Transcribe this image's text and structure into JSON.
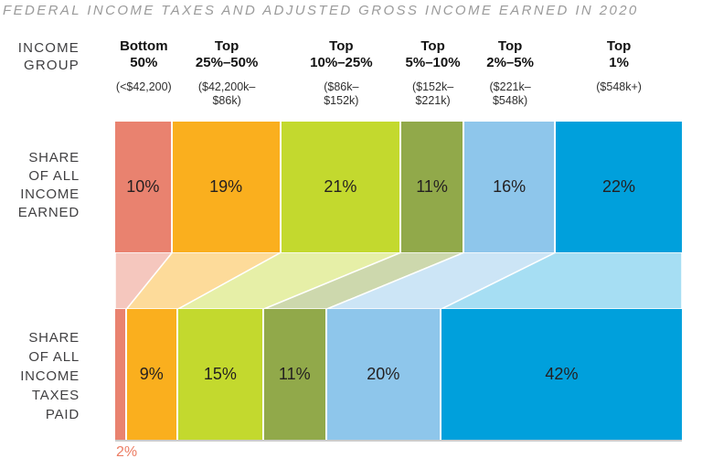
{
  "left_axis": {
    "income_group": "INCOME\nGROUP",
    "row1": "SHARE\nOF ALL\nINCOME\nEARNED",
    "row2": "SHARE\nOF ALL\nINCOME\nTAXES\nPAID"
  },
  "outside_label": {
    "text": "2%",
    "color": "#EC7D64"
  },
  "chart_data": {
    "type": "bar",
    "subtype": "stacked-100pct-bars-with-flow-bands",
    "title": "FEDERAL INCOME TAXES AND ADJUSTED GROSS INCOME EARNED IN 2020",
    "unit": "%",
    "title_color": "#9B9B9B",
    "label_color": "#231F20",
    "categories": [
      {
        "label": "Bottom\n50%",
        "range": "(<$42,200)",
        "color": "#E9826F",
        "flow_opacity": 0.45
      },
      {
        "label": "Top\n25%–50%",
        "range": "($42,200k–\n$86k)",
        "color": "#FAAF1E",
        "flow_opacity": 0.45
      },
      {
        "label": "Top\n10%–25%",
        "range": "($86k–\n$152k)",
        "color": "#C3D92E",
        "flow_opacity": 0.42
      },
      {
        "label": "Top\n5%–10%",
        "range": "($152k–\n$221k)",
        "color": "#91A94A",
        "flow_opacity": 0.45
      },
      {
        "label": "Top\n2%–5%",
        "range": "($221k–\n$548k)",
        "color": "#8EC6EB",
        "flow_opacity": 0.45
      },
      {
        "label": "Top\n1%",
        "range": "($548k+)",
        "color": "#00A0DC",
        "flow_opacity": 0.35
      }
    ],
    "series": [
      {
        "name": "SHARE OF ALL INCOME EARNED",
        "values": [
          10,
          19,
          21,
          11,
          16,
          22
        ]
      },
      {
        "name": "SHARE OF ALL INCOME TAXES PAID",
        "values": [
          2,
          9,
          15,
          11,
          20,
          42
        ]
      }
    ],
    "min_inside_label_value": 4
  }
}
